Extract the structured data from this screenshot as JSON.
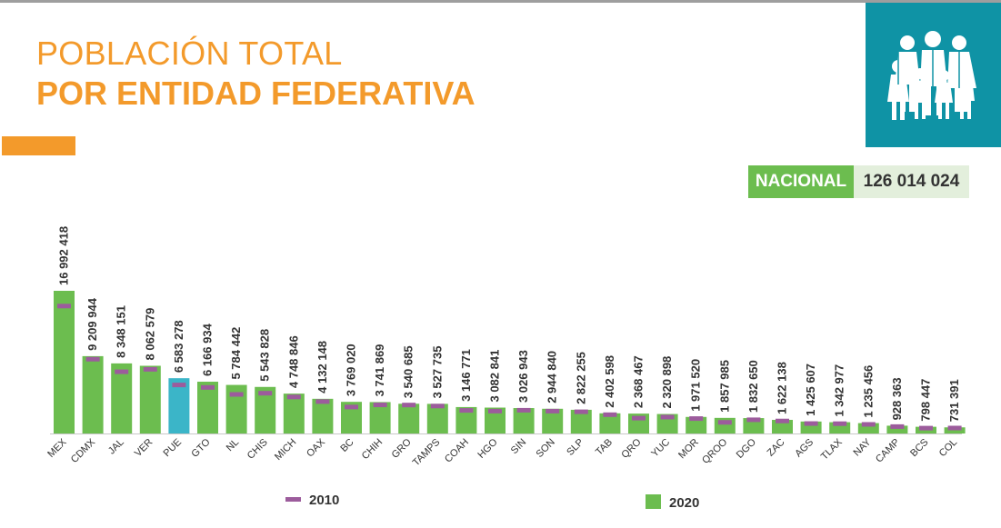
{
  "header": {
    "title_line1": "POBLACIÓN TOTAL",
    "title_line2": "POR ENTIDAD FEDERATIVA",
    "icon": "family-group-icon"
  },
  "national": {
    "label": "NACIONAL",
    "value": "126 014 024"
  },
  "colors": {
    "title": "#f39a2b",
    "accent": "#f39a2b",
    "icon_box": "#0f93a5",
    "bar_2020": "#6cbd4f",
    "bar_highlight": "#3bb5c8",
    "marker_2010": "#9c5c9c",
    "national_label_bg": "#6cbd4f",
    "national_value_bg": "#e3efdc"
  },
  "chart_data": {
    "type": "bar",
    "categories": [
      "MEX",
      "CDMX",
      "JAL",
      "VER",
      "PUE",
      "GTO",
      "NL",
      "CHIS",
      "MICH",
      "OAX",
      "BC",
      "CHIH",
      "GRO",
      "TAMPS",
      "COAH",
      "HGO",
      "SIN",
      "SON",
      "SLP",
      "TAB",
      "QRO",
      "YUC",
      "MOR",
      "QROO",
      "DGO",
      "ZAC",
      "AGS",
      "TLAX",
      "NAY",
      "CAMP",
      "BCS",
      "COL"
    ],
    "value_labels": [
      "16 992 418",
      "9 209 944",
      "8 348 151",
      "8 062 579",
      "6 583 278",
      "6 166 934",
      "5 784 442",
      "5 543 828",
      "4 748 846",
      "4 132 148",
      "3 769 020",
      "3 741 869",
      "3 540 685",
      "3 527 735",
      "3 146 771",
      "3 082 841",
      "3 026 943",
      "2 944 840",
      "2 822 255",
      "2 402 598",
      "2 368 467",
      "2 320 898",
      "1 971 520",
      "1 857 985",
      "1 832 650",
      "1 622 138",
      "1 425 607",
      "1 342 977",
      "1 235 456",
      "928 363",
      "798 447",
      "731 391"
    ],
    "series": [
      {
        "name": "2020",
        "type": "bar",
        "values": [
          16992418,
          9209944,
          8348151,
          8062579,
          6583278,
          6166934,
          5784442,
          5543828,
          4748846,
          4132148,
          3769020,
          3741869,
          3540685,
          3527735,
          3146771,
          3082841,
          3026943,
          2944840,
          2822255,
          2402598,
          2368467,
          2320898,
          1971520,
          1857985,
          1832650,
          1622138,
          1425607,
          1342977,
          1235456,
          928363,
          798447,
          731391
        ]
      },
      {
        "name": "2010",
        "type": "marker",
        "values": [
          15175862,
          8851080,
          7350682,
          7643194,
          5779829,
          5486372,
          4653458,
          4796580,
          4351037,
          3801962,
          3155070,
          3406465,
          3388768,
          3268554,
          2748391,
          2665018,
          2767761,
          2662480,
          2585518,
          2238603,
          1827937,
          1955577,
          1777227,
          1325578,
          1632934,
          1490668,
          1184996,
          1169936,
          1084979,
          822441,
          637026,
          650555
        ]
      }
    ],
    "highlight_category": "PUE",
    "ylim": [
      0,
      17000000
    ],
    "grid": false,
    "legend": [
      {
        "name": "2010",
        "symbol": "dash"
      },
      {
        "name": "2020",
        "symbol": "square"
      }
    ],
    "legend_position": "bottom"
  }
}
